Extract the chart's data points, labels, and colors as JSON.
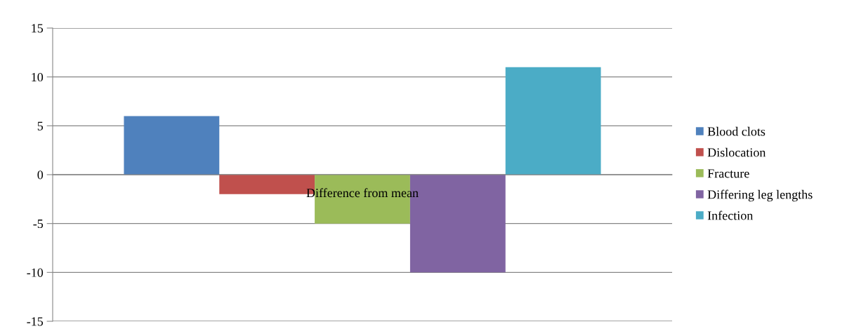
{
  "chart_data": {
    "type": "bar",
    "categories": [
      "Difference from mean"
    ],
    "series": [
      {
        "name": "Blood clots",
        "color": "#4f81bd",
        "values": [
          6
        ]
      },
      {
        "name": "Dislocation",
        "color": "#c0504d",
        "values": [
          -2
        ]
      },
      {
        "name": "Fracture",
        "color": "#9bbb59",
        "values": [
          -5
        ]
      },
      {
        "name": "Differing leg lengths",
        "color": "#8064a2",
        "values": [
          -10
        ]
      },
      {
        "name": "Infection",
        "color": "#4bacc6",
        "values": [
          11
        ]
      }
    ],
    "ylim": [
      -15,
      15
    ],
    "yticks": [
      -15,
      -10,
      -5,
      0,
      5,
      10,
      15
    ],
    "grid": "y",
    "legend": "right"
  }
}
